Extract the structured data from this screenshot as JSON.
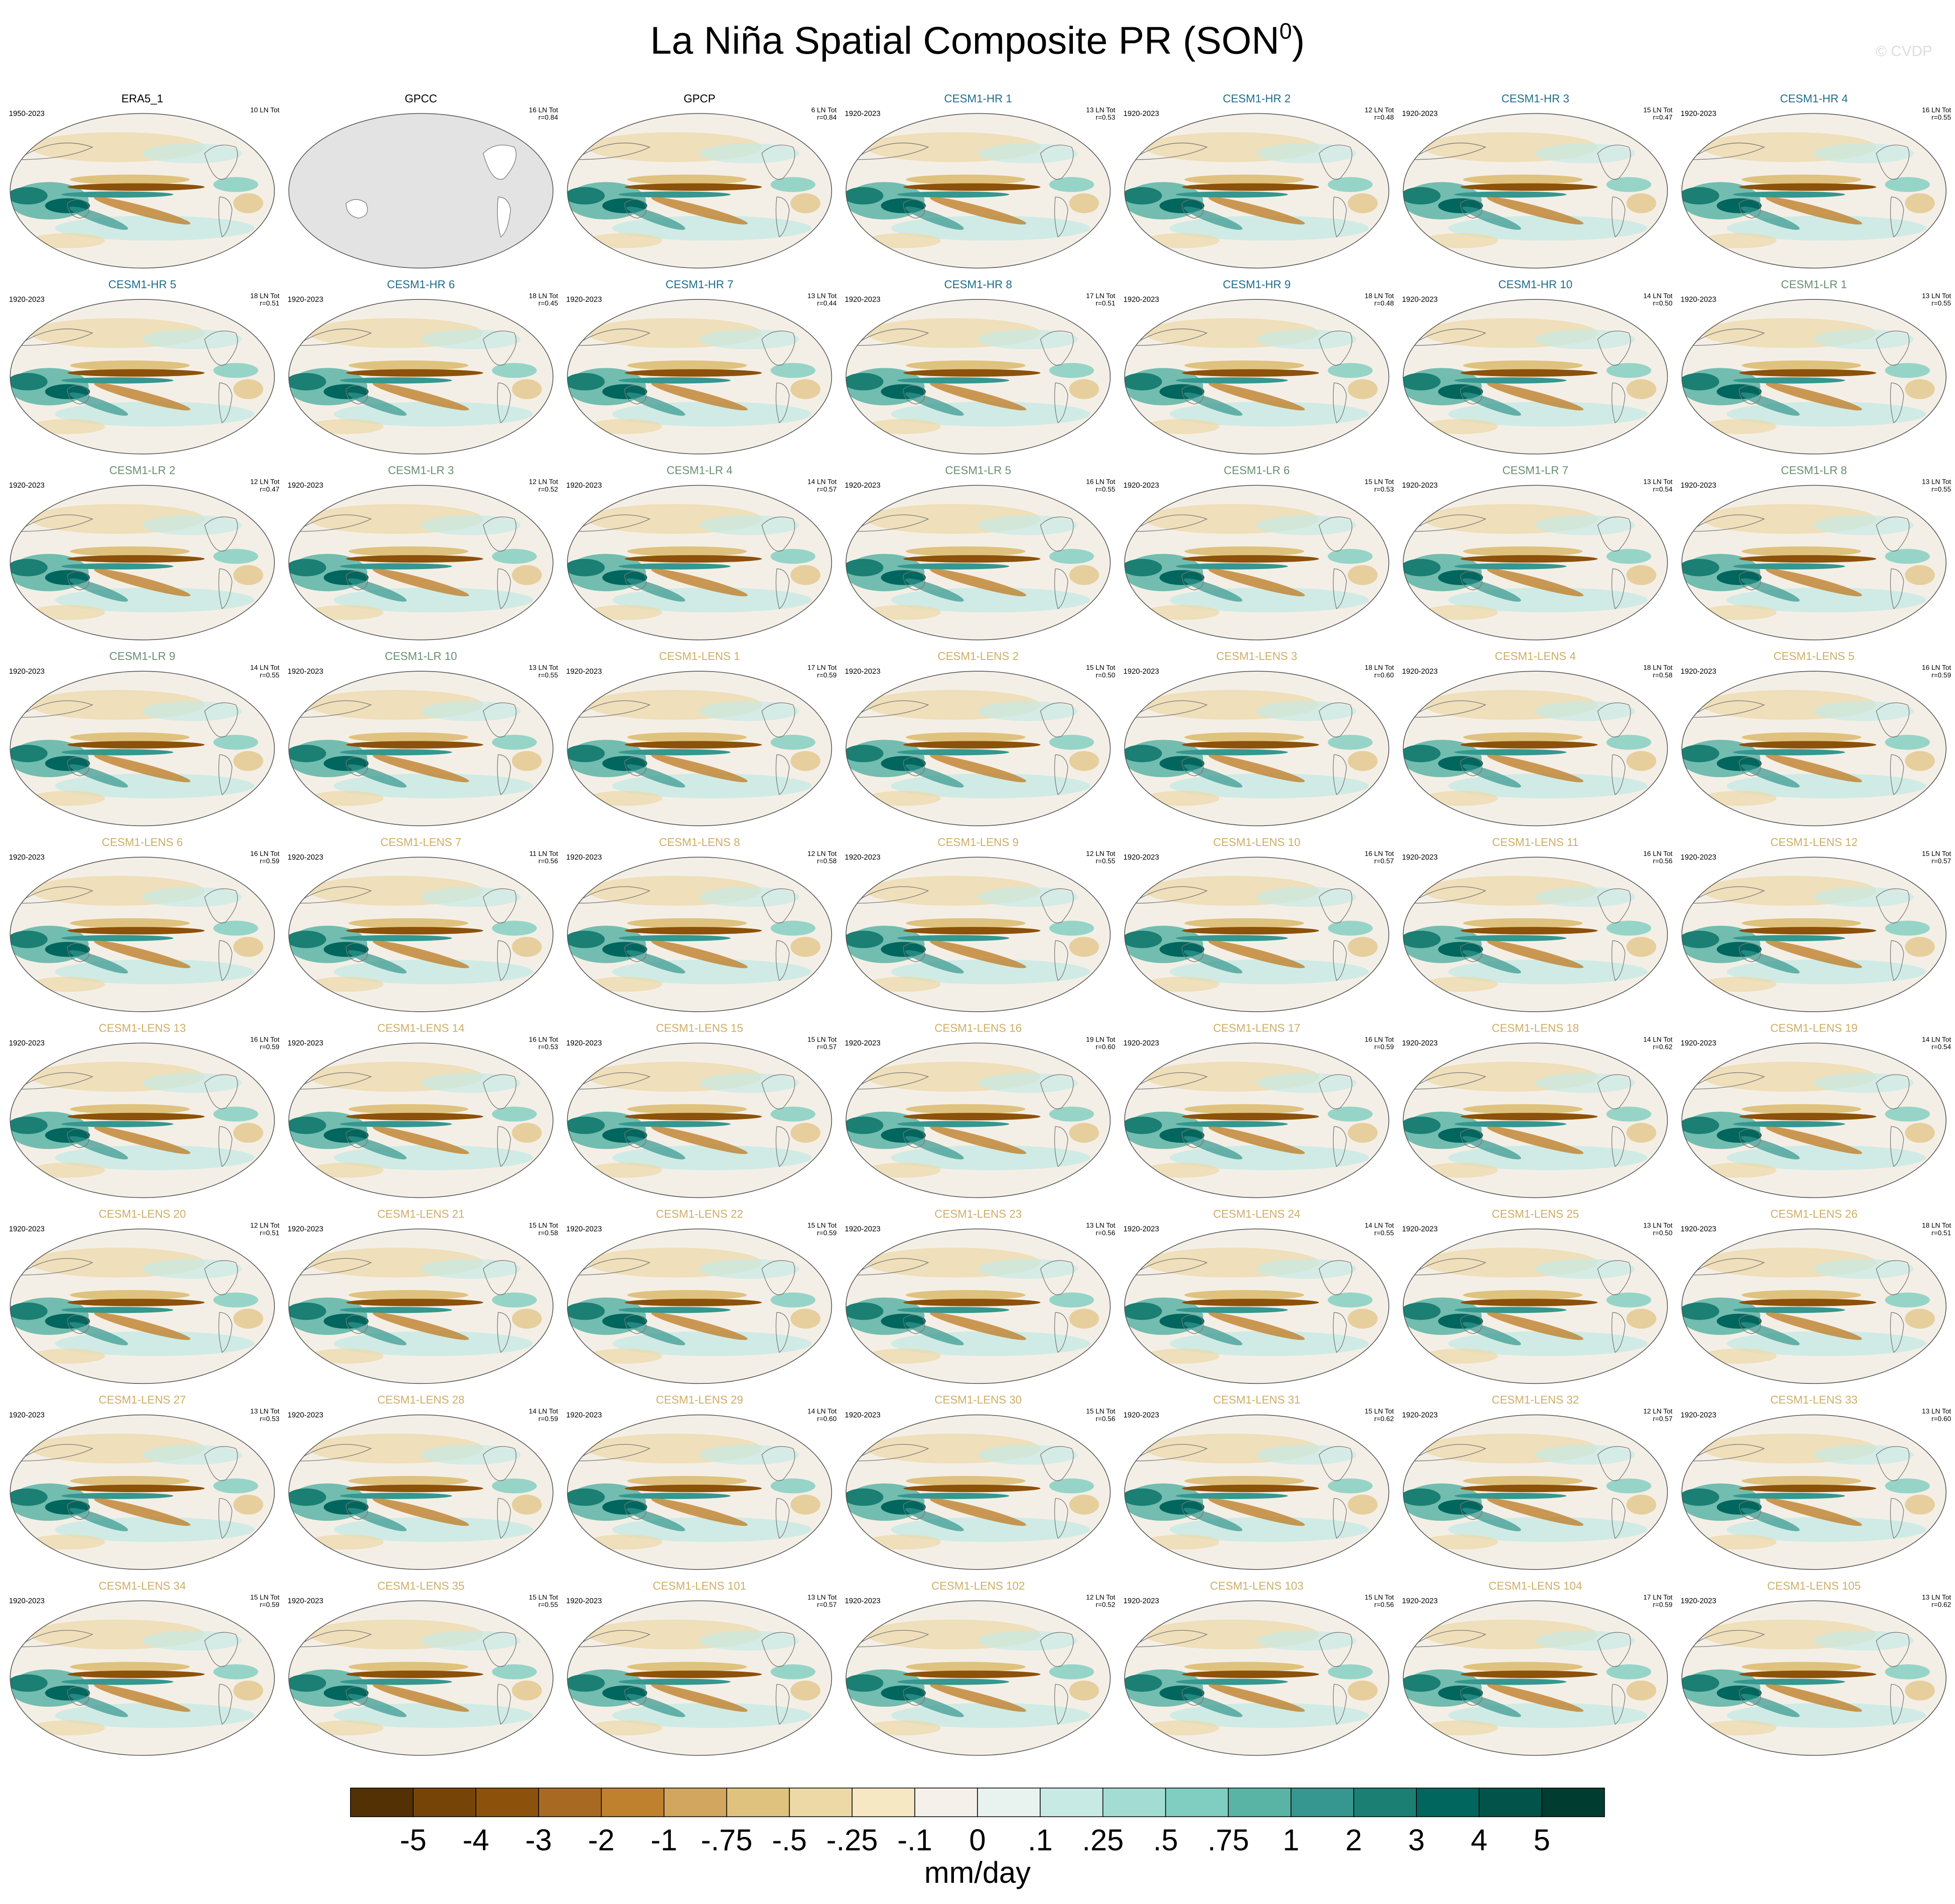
{
  "title_main": "La Niña Spatial Composite PR (SON",
  "title_sup": "0",
  "title_close": ")",
  "credit": "© CVDP",
  "panels": [
    {
      "name": "ERA5_1",
      "years": "1950-2023",
      "count": "10 LN Tot",
      "color": "#000000"
    },
    {
      "name": "GPCC",
      "count": "16 LN Tot",
      "r": "r=0.84",
      "color": "#000000",
      "missing": true
    },
    {
      "name": "GPCP",
      "count": "6 LN Tot",
      "r": "r=0.84",
      "color": "#000000"
    },
    {
      "name": "CESM1-HR 1",
      "years": "1920-2023",
      "count": "13 LN Tot",
      "r": "r=0.53",
      "color": "#1f6e8c"
    },
    {
      "name": "CESM1-HR 2",
      "years": "1920-2023",
      "count": "12 LN Tot",
      "r": "r=0.48",
      "color": "#1f6e8c"
    },
    {
      "name": "CESM1-HR 3",
      "years": "1920-2023",
      "count": "15 LN Tot",
      "r": "r=0.47",
      "color": "#1f6e8c"
    },
    {
      "name": "CESM1-HR 4",
      "years": "1920-2023",
      "count": "16 LN Tot",
      "r": "r=0.55",
      "color": "#1f6e8c"
    },
    {
      "name": "CESM1-HR 5",
      "years": "1920-2023",
      "count": "18 LN Tot",
      "r": "r=0.51",
      "color": "#1f6e8c"
    },
    {
      "name": "CESM1-HR 6",
      "years": "1920-2023",
      "count": "18 LN Tot",
      "r": "r=0.45",
      "color": "#1f6e8c"
    },
    {
      "name": "CESM1-HR 7",
      "years": "1920-2023",
      "count": "13 LN Tot",
      "r": "r=0.44",
      "color": "#1f6e8c"
    },
    {
      "name": "CESM1-HR 8",
      "years": "1920-2023",
      "count": "17 LN Tot",
      "r": "r=0.51",
      "color": "#1f6e8c"
    },
    {
      "name": "CESM1-HR 9",
      "years": "1920-2023",
      "count": "18 LN Tot",
      "r": "r=0.48",
      "color": "#1f6e8c"
    },
    {
      "name": "CESM1-HR 10",
      "years": "1920-2023",
      "count": "14 LN Tot",
      "r": "r=0.50",
      "color": "#1f6e8c"
    },
    {
      "name": "CESM1-LR 1",
      "years": "1920-2023",
      "count": "13 LN Tot",
      "r": "r=0.55",
      "color": "#6a8f72"
    },
    {
      "name": "CESM1-LR 2",
      "years": "1920-2023",
      "count": "12 LN Tot",
      "r": "r=0.47",
      "color": "#6a8f72"
    },
    {
      "name": "CESM1-LR 3",
      "years": "1920-2023",
      "count": "12 LN Tot",
      "r": "r=0.52",
      "color": "#6a8f72"
    },
    {
      "name": "CESM1-LR 4",
      "years": "1920-2023",
      "count": "14 LN Tot",
      "r": "r=0.57",
      "color": "#6a8f72"
    },
    {
      "name": "CESM1-LR 5",
      "years": "1920-2023",
      "count": "16 LN Tot",
      "r": "r=0.55",
      "color": "#6a8f72"
    },
    {
      "name": "CESM1-LR 6",
      "years": "1920-2023",
      "count": "15 LN Tot",
      "r": "r=0.53",
      "color": "#6a8f72"
    },
    {
      "name": "CESM1-LR 7",
      "years": "1920-2023",
      "count": "13 LN Tot",
      "r": "r=0.54",
      "color": "#6a8f72"
    },
    {
      "name": "CESM1-LR 8",
      "years": "1920-2023",
      "count": "13 LN Tot",
      "r": "r=0.55",
      "color": "#6a8f72"
    },
    {
      "name": "CESM1-LR 9",
      "years": "1920-2023",
      "count": "14 LN Tot",
      "r": "r=0.55",
      "color": "#6a8f72"
    },
    {
      "name": "CESM1-LR 10",
      "years": "1920-2023",
      "count": "13 LN Tot",
      "r": "r=0.55",
      "color": "#6a8f72"
    },
    {
      "name": "CESM1-LENS 1",
      "years": "1920-2023",
      "count": "17 LN Tot",
      "r": "r=0.59",
      "color": "#cfae66"
    },
    {
      "name": "CESM1-LENS 2",
      "years": "1920-2023",
      "count": "15 LN Tot",
      "r": "r=0.50",
      "color": "#cfae66"
    },
    {
      "name": "CESM1-LENS 3",
      "years": "1920-2023",
      "count": "18 LN Tot",
      "r": "r=0.60",
      "color": "#cfae66"
    },
    {
      "name": "CESM1-LENS 4",
      "years": "1920-2023",
      "count": "18 LN Tot",
      "r": "r=0.58",
      "color": "#cfae66"
    },
    {
      "name": "CESM1-LENS 5",
      "years": "1920-2023",
      "count": "16 LN Tot",
      "r": "r=0.59",
      "color": "#cfae66"
    },
    {
      "name": "CESM1-LENS 6",
      "years": "1920-2023",
      "count": "16 LN Tot",
      "r": "r=0.59",
      "color": "#cfae66"
    },
    {
      "name": "CESM1-LENS 7",
      "years": "1920-2023",
      "count": "11 LN Tot",
      "r": "r=0.56",
      "color": "#cfae66"
    },
    {
      "name": "CESM1-LENS 8",
      "years": "1920-2023",
      "count": "12 LN Tot",
      "r": "r=0.58",
      "color": "#cfae66"
    },
    {
      "name": "CESM1-LENS 9",
      "years": "1920-2023",
      "count": "12 LN Tot",
      "r": "r=0.55",
      "color": "#cfae66"
    },
    {
      "name": "CESM1-LENS 10",
      "years": "1920-2023",
      "count": "16 LN Tot",
      "r": "r=0.57",
      "color": "#cfae66"
    },
    {
      "name": "CESM1-LENS 11",
      "years": "1920-2023",
      "count": "16 LN Tot",
      "r": "r=0.56",
      "color": "#cfae66"
    },
    {
      "name": "CESM1-LENS 12",
      "years": "1920-2023",
      "count": "15 LN Tot",
      "r": "r=0.57",
      "color": "#cfae66"
    },
    {
      "name": "CESM1-LENS 13",
      "years": "1920-2023",
      "count": "16 LN Tot",
      "r": "r=0.59",
      "color": "#cfae66"
    },
    {
      "name": "CESM1-LENS 14",
      "years": "1920-2023",
      "count": "16 LN Tot",
      "r": "r=0.53",
      "color": "#cfae66"
    },
    {
      "name": "CESM1-LENS 15",
      "years": "1920-2023",
      "count": "15 LN Tot",
      "r": "r=0.57",
      "color": "#cfae66"
    },
    {
      "name": "CESM1-LENS 16",
      "years": "1920-2023",
      "count": "19 LN Tot",
      "r": "r=0.60",
      "color": "#cfae66"
    },
    {
      "name": "CESM1-LENS 17",
      "years": "1920-2023",
      "count": "16 LN Tot",
      "r": "r=0.59",
      "color": "#cfae66"
    },
    {
      "name": "CESM1-LENS 18",
      "years": "1920-2023",
      "count": "14 LN Tot",
      "r": "r=0.62",
      "color": "#cfae66"
    },
    {
      "name": "CESM1-LENS 19",
      "years": "1920-2023",
      "count": "14 LN Tot",
      "r": "r=0.54",
      "color": "#cfae66"
    },
    {
      "name": "CESM1-LENS 20",
      "years": "1920-2023",
      "count": "12 LN Tot",
      "r": "r=0.51",
      "color": "#cfae66"
    },
    {
      "name": "CESM1-LENS 21",
      "years": "1920-2023",
      "count": "15 LN Tot",
      "r": "r=0.58",
      "color": "#cfae66"
    },
    {
      "name": "CESM1-LENS 22",
      "years": "1920-2023",
      "count": "15 LN Tot",
      "r": "r=0.59",
      "color": "#cfae66"
    },
    {
      "name": "CESM1-LENS 23",
      "years": "1920-2023",
      "count": "13 LN Tot",
      "r": "r=0.56",
      "color": "#cfae66"
    },
    {
      "name": "CESM1-LENS 24",
      "years": "1920-2023",
      "count": "14 LN Tot",
      "r": "r=0.55",
      "color": "#cfae66"
    },
    {
      "name": "CESM1-LENS 25",
      "years": "1920-2023",
      "count": "13 LN Tot",
      "r": "r=0.50",
      "color": "#cfae66"
    },
    {
      "name": "CESM1-LENS 26",
      "years": "1920-2023",
      "count": "18 LN Tot",
      "r": "r=0.51",
      "color": "#cfae66"
    },
    {
      "name": "CESM1-LENS 27",
      "years": "1920-2023",
      "count": "13 LN Tot",
      "r": "r=0.53",
      "color": "#cfae66"
    },
    {
      "name": "CESM1-LENS 28",
      "years": "1920-2023",
      "count": "14 LN Tot",
      "r": "r=0.59",
      "color": "#cfae66"
    },
    {
      "name": "CESM1-LENS 29",
      "years": "1920-2023",
      "count": "14 LN Tot",
      "r": "r=0.60",
      "color": "#cfae66"
    },
    {
      "name": "CESM1-LENS 30",
      "years": "1920-2023",
      "count": "15 LN Tot",
      "r": "r=0.56",
      "color": "#cfae66"
    },
    {
      "name": "CESM1-LENS 31",
      "years": "1920-2023",
      "count": "15 LN Tot",
      "r": "r=0.62",
      "color": "#cfae66"
    },
    {
      "name": "CESM1-LENS 32",
      "years": "1920-2023",
      "count": "12 LN Tot",
      "r": "r=0.57",
      "color": "#cfae66"
    },
    {
      "name": "CESM1-LENS 33",
      "years": "1920-2023",
      "count": "13 LN Tot",
      "r": "r=0.60",
      "color": "#cfae66"
    },
    {
      "name": "CESM1-LENS 34",
      "years": "1920-2023",
      "count": "15 LN Tot",
      "r": "r=0.59",
      "color": "#cfae66"
    },
    {
      "name": "CESM1-LENS 35",
      "years": "1920-2023",
      "count": "15 LN Tot",
      "r": "r=0.55",
      "color": "#cfae66"
    },
    {
      "name": "CESM1-LENS 101",
      "years": "1920-2023",
      "count": "13 LN Tot",
      "r": "r=0.57",
      "color": "#cfae66"
    },
    {
      "name": "CESM1-LENS 102",
      "years": "1920-2023",
      "count": "12 LN Tot",
      "r": "r=0.52",
      "color": "#cfae66"
    },
    {
      "name": "CESM1-LENS 103",
      "years": "1920-2023",
      "count": "15 LN Tot",
      "r": "r=0.56",
      "color": "#cfae66"
    },
    {
      "name": "CESM1-LENS 104",
      "years": "1920-2023",
      "count": "17 LN Tot",
      "r": "r=0.59",
      "color": "#cfae66"
    },
    {
      "name": "CESM1-LENS 105",
      "years": "1920-2023",
      "count": "13 LN Tot",
      "r": "r=0.62",
      "color": "#cfae66"
    }
  ],
  "colorbar": {
    "unit": "mm/day",
    "colors": [
      "#543005",
      "#774407",
      "#8c510a",
      "#a86a22",
      "#bf812d",
      "#d2a65f",
      "#dfc27d",
      "#ecd9a6",
      "#f6e8c3",
      "#f5f1ea",
      "#e8f2ef",
      "#c7eae5",
      "#a3dcd2",
      "#80cdc1",
      "#5ab4a6",
      "#35978f",
      "#1b7f73",
      "#01665e",
      "#02544a",
      "#003c30"
    ],
    "ticks": [
      -5,
      -4,
      -3,
      -2,
      -1,
      {
        "value": -0.75,
        "label": "-.75"
      },
      {
        "value": -0.5,
        "label": "-.5"
      },
      {
        "value": -0.25,
        "label": "-.25"
      },
      {
        "value": -0.1,
        "label": "-.1"
      },
      0,
      {
        "value": 0.1,
        "label": ".1"
      },
      {
        "value": 0.25,
        "label": ".25"
      },
      {
        "value": 0.5,
        "label": ".5"
      },
      {
        "value": 0.75,
        "label": ".75"
      },
      1,
      2,
      3,
      4,
      5
    ]
  }
}
